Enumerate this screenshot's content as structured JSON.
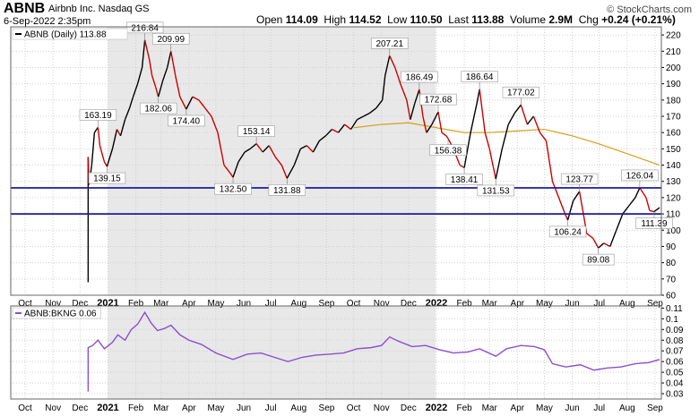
{
  "header": {
    "ticker": "ABNB",
    "company": "Airbnb Inc. Nasdaq GS",
    "datetime": "6-Sep-2022 2:35pm",
    "open_label": "Open",
    "open": "114.09",
    "high_label": "High",
    "high": "114.52",
    "low_label": "Low",
    "low": "110.50",
    "last_label": "Last",
    "last": "113.88",
    "volume_label": "Volume",
    "volume": "2.9M",
    "chg_label": "Chg",
    "chg": "+0.24 (+0.21%)",
    "brand": "© StockCharts.com"
  },
  "colors": {
    "up": "#000000",
    "down": "#cc0000",
    "ma": "#d4a017",
    "hline": "#1a1aa0",
    "ratio": "#8a4fd0",
    "shade": "#e8e8e8"
  },
  "chart_data": [
    {
      "type": "line",
      "legend": "ABNB (Daily) 113.88",
      "ylim": [
        60,
        225
      ],
      "yticks": [
        60,
        70,
        80,
        90,
        100,
        110,
        120,
        130,
        140,
        150,
        160,
        170,
        180,
        190,
        200,
        210,
        220
      ],
      "x_ticks": [
        {
          "label": "Oct",
          "date": "2020-10-01"
        },
        {
          "label": "Nov",
          "date": "2020-11-01"
        },
        {
          "label": "Dec",
          "date": "2020-12-01"
        },
        {
          "label": "2021",
          "date": "2021-01-01",
          "year": true
        },
        {
          "label": "Feb",
          "date": "2021-02-01"
        },
        {
          "label": "Mar",
          "date": "2021-03-01"
        },
        {
          "label": "Apr",
          "date": "2021-04-01"
        },
        {
          "label": "May",
          "date": "2021-05-01"
        },
        {
          "label": "Jun",
          "date": "2021-06-01"
        },
        {
          "label": "Jul",
          "date": "2021-07-01"
        },
        {
          "label": "Aug",
          "date": "2021-08-01"
        },
        {
          "label": "Sep",
          "date": "2021-09-01"
        },
        {
          "label": "Oct",
          "date": "2021-10-01"
        },
        {
          "label": "Nov",
          "date": "2021-11-01"
        },
        {
          "label": "Dec",
          "date": "2021-12-01"
        },
        {
          "label": "2022",
          "date": "2022-01-01",
          "year": true
        },
        {
          "label": "Feb",
          "date": "2022-02-01"
        },
        {
          "label": "Mar",
          "date": "2022-03-01"
        },
        {
          "label": "Apr",
          "date": "2022-04-01"
        },
        {
          "label": "May",
          "date": "2022-05-01"
        },
        {
          "label": "Jun",
          "date": "2022-06-01"
        },
        {
          "label": "Jul",
          "date": "2022-07-01"
        },
        {
          "label": "Aug",
          "date": "2022-08-01"
        },
        {
          "label": "Sep",
          "date": "2022-09-01"
        }
      ],
      "x_range": [
        "2020-09-15",
        "2022-09-08"
      ],
      "shaded_ranges": [
        [
          "2021-01-01",
          "2021-12-31"
        ]
      ],
      "price": [
        [
          "2020-12-10",
          68
        ],
        [
          "2020-12-10",
          145
        ],
        [
          "2020-12-11",
          128
        ],
        [
          "2020-12-14",
          140
        ],
        [
          "2020-12-17",
          160
        ],
        [
          "2020-12-21",
          163.19
        ],
        [
          "2020-12-23",
          152
        ],
        [
          "2020-12-28",
          142
        ],
        [
          "2020-12-31",
          139.15
        ],
        [
          "2021-01-06",
          150
        ],
        [
          "2021-01-11",
          162
        ],
        [
          "2021-01-15",
          158
        ],
        [
          "2021-01-20",
          168
        ],
        [
          "2021-01-25",
          175
        ],
        [
          "2021-01-29",
          182
        ],
        [
          "2021-02-03",
          190
        ],
        [
          "2021-02-08",
          200
        ],
        [
          "2021-02-11",
          216.84
        ],
        [
          "2021-02-16",
          205
        ],
        [
          "2021-02-19",
          195
        ],
        [
          "2021-02-23",
          188
        ],
        [
          "2021-02-26",
          182.06
        ],
        [
          "2021-03-03",
          192
        ],
        [
          "2021-03-08",
          200
        ],
        [
          "2021-03-12",
          209.99
        ],
        [
          "2021-03-17",
          195
        ],
        [
          "2021-03-22",
          182
        ],
        [
          "2021-03-29",
          174.4
        ],
        [
          "2021-04-05",
          182
        ],
        [
          "2021-04-12",
          180
        ],
        [
          "2021-04-19",
          175
        ],
        [
          "2021-04-26",
          170
        ],
        [
          "2021-05-03",
          160
        ],
        [
          "2021-05-10",
          140
        ],
        [
          "2021-05-17",
          135
        ],
        [
          "2021-05-20",
          132.5
        ],
        [
          "2021-05-26",
          142
        ],
        [
          "2021-06-02",
          148
        ],
        [
          "2021-06-08",
          150
        ],
        [
          "2021-06-15",
          153.14
        ],
        [
          "2021-06-22",
          148
        ],
        [
          "2021-06-29",
          152
        ],
        [
          "2021-07-06",
          145
        ],
        [
          "2021-07-13",
          140
        ],
        [
          "2021-07-19",
          131.88
        ],
        [
          "2021-07-27",
          140
        ],
        [
          "2021-08-03",
          150
        ],
        [
          "2021-08-10",
          152
        ],
        [
          "2021-08-17",
          148
        ],
        [
          "2021-08-24",
          155
        ],
        [
          "2021-08-31",
          158
        ],
        [
          "2021-09-07",
          162
        ],
        [
          "2021-09-14",
          160
        ],
        [
          "2021-09-21",
          165
        ],
        [
          "2021-09-28",
          162
        ],
        [
          "2021-10-05",
          168
        ],
        [
          "2021-10-12",
          170
        ],
        [
          "2021-10-19",
          172
        ],
        [
          "2021-10-26",
          175
        ],
        [
          "2021-11-02",
          180
        ],
        [
          "2021-11-05",
          195
        ],
        [
          "2021-11-10",
          207.21
        ],
        [
          "2021-11-16",
          200
        ],
        [
          "2021-11-22",
          190
        ],
        [
          "2021-11-29",
          180
        ],
        [
          "2021-12-03",
          168
        ],
        [
          "2021-12-08",
          178
        ],
        [
          "2021-12-13",
          186.49
        ],
        [
          "2021-12-17",
          170
        ],
        [
          "2021-12-21",
          160
        ],
        [
          "2021-12-27",
          165
        ],
        [
          "2022-01-03",
          172.68
        ],
        [
          "2022-01-07",
          160
        ],
        [
          "2022-01-12",
          158
        ],
        [
          "2022-01-14",
          156.38
        ],
        [
          "2022-01-20",
          150
        ],
        [
          "2022-01-27",
          140
        ],
        [
          "2022-02-01",
          138.41
        ],
        [
          "2022-02-08",
          160
        ],
        [
          "2022-02-15",
          178
        ],
        [
          "2022-02-18",
          186.64
        ],
        [
          "2022-02-24",
          160
        ],
        [
          "2022-03-01",
          150
        ],
        [
          "2022-03-08",
          131.53
        ],
        [
          "2022-03-15",
          150
        ],
        [
          "2022-03-22",
          165
        ],
        [
          "2022-03-29",
          172
        ],
        [
          "2022-04-05",
          177.02
        ],
        [
          "2022-04-12",
          165
        ],
        [
          "2022-04-19",
          170
        ],
        [
          "2022-04-26",
          160
        ],
        [
          "2022-05-03",
          155
        ],
        [
          "2022-05-10",
          130
        ],
        [
          "2022-05-17",
          120
        ],
        [
          "2022-05-24",
          110
        ],
        [
          "2022-05-27",
          106.24
        ],
        [
          "2022-06-02",
          118
        ],
        [
          "2022-06-09",
          123.77
        ],
        [
          "2022-06-14",
          108
        ],
        [
          "2022-06-17",
          98
        ],
        [
          "2022-06-24",
          95
        ],
        [
          "2022-06-30",
          89.08
        ],
        [
          "2022-07-06",
          92
        ],
        [
          "2022-07-13",
          90
        ],
        [
          "2022-07-20",
          100
        ],
        [
          "2022-07-27",
          110
        ],
        [
          "2022-08-03",
          115
        ],
        [
          "2022-08-10",
          120
        ],
        [
          "2022-08-15",
          126.04
        ],
        [
          "2022-08-22",
          120
        ],
        [
          "2022-08-26",
          112
        ],
        [
          "2022-08-31",
          111.39
        ],
        [
          "2022-09-06",
          113.88
        ]
      ],
      "moving_average": [
        [
          "2021-10-01",
          163
        ],
        [
          "2021-11-01",
          165
        ],
        [
          "2021-12-01",
          166
        ],
        [
          "2022-01-01",
          163
        ],
        [
          "2022-02-01",
          160
        ],
        [
          "2022-03-01",
          160
        ],
        [
          "2022-04-01",
          161
        ],
        [
          "2022-05-01",
          162
        ],
        [
          "2022-06-01",
          158
        ],
        [
          "2022-07-01",
          153
        ],
        [
          "2022-08-01",
          147
        ],
        [
          "2022-09-06",
          140
        ]
      ],
      "horizontal_lines": [
        126,
        110
      ],
      "peak_labels": [
        {
          "date": "2020-12-21",
          "value": 163.19,
          "text": "163.19",
          "pos": "above"
        },
        {
          "date": "2020-12-31",
          "value": 139.15,
          "text": "139.15",
          "pos": "below"
        },
        {
          "date": "2021-02-11",
          "value": 216.84,
          "text": "216.84",
          "pos": "above"
        },
        {
          "date": "2021-02-26",
          "value": 182.06,
          "text": "182.06",
          "pos": "below"
        },
        {
          "date": "2021-03-12",
          "value": 209.99,
          "text": "209.99",
          "pos": "above"
        },
        {
          "date": "2021-03-29",
          "value": 174.4,
          "text": "174.40",
          "pos": "below"
        },
        {
          "date": "2021-05-20",
          "value": 132.5,
          "text": "132.50",
          "pos": "below"
        },
        {
          "date": "2021-06-15",
          "value": 153.14,
          "text": "153.14",
          "pos": "above"
        },
        {
          "date": "2021-07-19",
          "value": 131.88,
          "text": "131.88",
          "pos": "below"
        },
        {
          "date": "2021-11-10",
          "value": 207.21,
          "text": "207.21",
          "pos": "above"
        },
        {
          "date": "2021-12-13",
          "value": 186.49,
          "text": "186.49",
          "pos": "above"
        },
        {
          "date": "2022-01-03",
          "value": 172.68,
          "text": "172.68",
          "pos": "above"
        },
        {
          "date": "2022-01-14",
          "value": 156.38,
          "text": "156.38",
          "pos": "below"
        },
        {
          "date": "2022-02-01",
          "value": 138.41,
          "text": "138.41",
          "pos": "below"
        },
        {
          "date": "2022-02-18",
          "value": 186.64,
          "text": "186.64",
          "pos": "above"
        },
        {
          "date": "2022-03-08",
          "value": 131.53,
          "text": "131.53",
          "pos": "below"
        },
        {
          "date": "2022-04-05",
          "value": 177.02,
          "text": "177.02",
          "pos": "above"
        },
        {
          "date": "2022-05-27",
          "value": 106.24,
          "text": "106.24",
          "pos": "below"
        },
        {
          "date": "2022-06-09",
          "value": 123.77,
          "text": "123.77",
          "pos": "above"
        },
        {
          "date": "2022-06-30",
          "value": 89.08,
          "text": "89.08",
          "pos": "below"
        },
        {
          "date": "2022-08-15",
          "value": 126.04,
          "text": "126.04",
          "pos": "above"
        },
        {
          "date": "2022-08-31",
          "value": 111.39,
          "text": "111.39",
          "pos": "below"
        }
      ]
    },
    {
      "type": "line",
      "legend": "ABNB:BKNG 0.06",
      "ylim": [
        0.025,
        0.112
      ],
      "yticks": [
        0.03,
        0.04,
        0.05,
        0.06,
        0.07,
        0.08,
        0.09,
        0.1,
        0.11
      ],
      "ytick_labels": [
        "0.03",
        "0.04",
        "0.05",
        "0.06",
        "0.07",
        "0.08",
        "0.09",
        "0.1",
        "0.11"
      ],
      "ratio": [
        [
          "2020-12-10",
          0.032
        ],
        [
          "2020-12-10",
          0.073
        ],
        [
          "2020-12-15",
          0.075
        ],
        [
          "2020-12-21",
          0.08
        ],
        [
          "2020-12-28",
          0.072
        ],
        [
          "2021-01-06",
          0.078
        ],
        [
          "2021-01-12",
          0.085
        ],
        [
          "2021-01-20",
          0.08
        ],
        [
          "2021-01-27",
          0.09
        ],
        [
          "2021-02-03",
          0.095
        ],
        [
          "2021-02-11",
          0.106
        ],
        [
          "2021-02-18",
          0.096
        ],
        [
          "2021-02-25",
          0.089
        ],
        [
          "2021-03-05",
          0.091
        ],
        [
          "2021-03-12",
          0.094
        ],
        [
          "2021-03-22",
          0.085
        ],
        [
          "2021-04-01",
          0.08
        ],
        [
          "2021-04-15",
          0.076
        ],
        [
          "2021-05-01",
          0.068
        ],
        [
          "2021-05-20",
          0.062
        ],
        [
          "2021-06-05",
          0.067
        ],
        [
          "2021-06-20",
          0.068
        ],
        [
          "2021-07-05",
          0.064
        ],
        [
          "2021-07-20",
          0.06
        ],
        [
          "2021-08-05",
          0.064
        ],
        [
          "2021-08-20",
          0.066
        ],
        [
          "2021-09-05",
          0.067
        ],
        [
          "2021-09-20",
          0.068
        ],
        [
          "2021-10-05",
          0.072
        ],
        [
          "2021-10-20",
          0.073
        ],
        [
          "2021-11-01",
          0.075
        ],
        [
          "2021-11-10",
          0.083
        ],
        [
          "2021-11-20",
          0.079
        ],
        [
          "2021-12-05",
          0.074
        ],
        [
          "2021-12-20",
          0.075
        ],
        [
          "2022-01-05",
          0.071
        ],
        [
          "2022-01-20",
          0.068
        ],
        [
          "2022-02-05",
          0.069
        ],
        [
          "2022-02-18",
          0.072
        ],
        [
          "2022-03-08",
          0.065
        ],
        [
          "2022-03-20",
          0.072
        ],
        [
          "2022-04-05",
          0.075
        ],
        [
          "2022-04-20",
          0.074
        ],
        [
          "2022-05-01",
          0.071
        ],
        [
          "2022-05-10",
          0.058
        ],
        [
          "2022-05-25",
          0.055
        ],
        [
          "2022-06-10",
          0.057
        ],
        [
          "2022-06-25",
          0.052
        ],
        [
          "2022-07-10",
          0.054
        ],
        [
          "2022-07-25",
          0.055
        ],
        [
          "2022-08-10",
          0.058
        ],
        [
          "2022-08-25",
          0.059
        ],
        [
          "2022-09-06",
          0.062
        ]
      ]
    }
  ]
}
